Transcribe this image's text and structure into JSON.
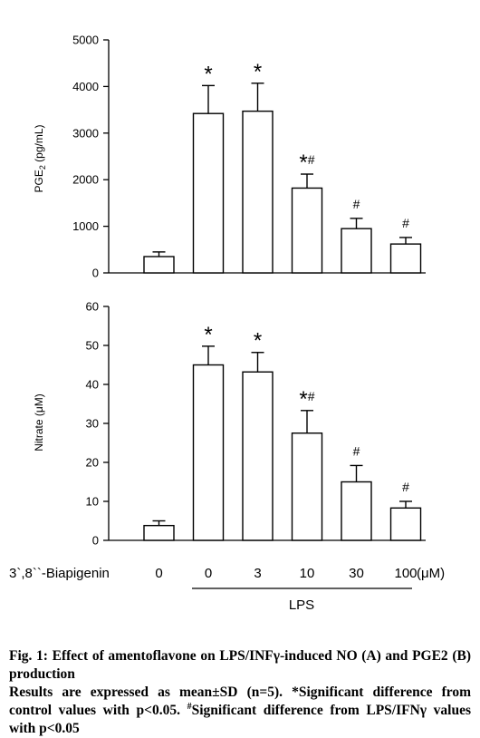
{
  "chart_data": [
    {
      "type": "bar",
      "panel": "top",
      "ylabel_main": "PGE",
      "ylabel_sub": "2",
      "ylabel_unit": "(pg/mL)",
      "ylim": [
        0,
        5000
      ],
      "yticks": [
        "0",
        "1000",
        "2000",
        "3000",
        "4000",
        "5000"
      ],
      "ytick_values": [
        0,
        1000,
        2000,
        3000,
        4000,
        5000
      ],
      "values": [
        350,
        3420,
        3470,
        1820,
        950,
        620
      ],
      "errors": [
        100,
        600,
        600,
        300,
        220,
        140
      ],
      "annotations": [
        "",
        "*",
        "*",
        "*#",
        "#",
        "#"
      ]
    },
    {
      "type": "bar",
      "panel": "bottom",
      "ylabel": "Nitrate (μM)",
      "ylim": [
        0,
        60
      ],
      "yticks": [
        "0",
        "10",
        "20",
        "30",
        "40",
        "50",
        "60"
      ],
      "ytick_values": [
        0,
        10,
        20,
        30,
        40,
        50,
        60
      ],
      "values": [
        3.8,
        45.0,
        43.2,
        27.5,
        15.0,
        8.3
      ],
      "errors": [
        1.2,
        4.8,
        5.0,
        5.8,
        4.2,
        1.7
      ],
      "annotations": [
        "",
        "*",
        "*",
        "*#",
        "#",
        "#"
      ]
    }
  ],
  "x_axis": {
    "label": "3`,8``-Biapigenin",
    "categories": [
      "0",
      "0",
      "3",
      "10",
      "30",
      "100"
    ],
    "unit": "(μM)",
    "group_label": "LPS"
  },
  "caption": {
    "title": "Fig. 1: Effect of amentoflavone on LPS/INFγ-induced NO (A) and PGE2 (B) production",
    "body_start": "Results are expressed as mean±SD (n=5). *Significant difference from control values with p<0.05.",
    "hash_mark": "#",
    "body_end": "Significant difference from LPS/IFNγ values with p<0.05"
  }
}
